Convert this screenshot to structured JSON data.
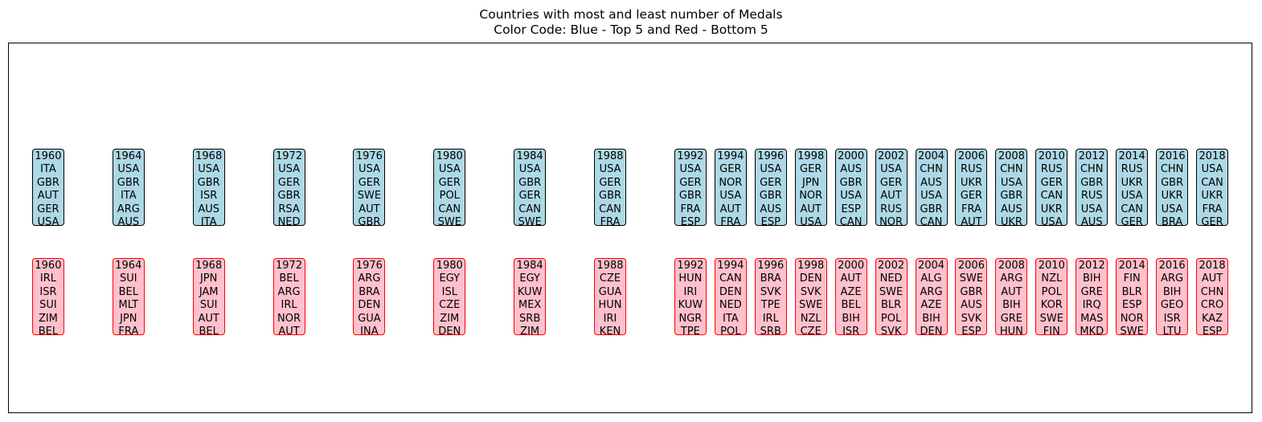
{
  "title_line1": "Countries with most and least number of Medals",
  "title_line2": "Color Code: Blue - Top 5 and Red - Bottom 5",
  "colors": {
    "top_fill": "#add8e6",
    "top_edge": "#000000",
    "bottom_fill": "#ffc0cb",
    "bottom_edge": "#ff0000"
  },
  "chart_data": {
    "type": "table",
    "title": "Countries with most and least number of Medals\nColor Code: Blue - Top 5 and Red - Bottom 5",
    "grid": false,
    "years": [
      "1960",
      "1964",
      "1968",
      "1972",
      "1976",
      "1980",
      "1984",
      "1988",
      "1992",
      "1994",
      "1996",
      "1998",
      "2000",
      "2002",
      "2004",
      "2006",
      "2008",
      "2010",
      "2012",
      "2014",
      "2016",
      "2018"
    ],
    "top5": [
      [
        "ITA",
        "GBR",
        "AUT",
        "GER",
        "USA"
      ],
      [
        "USA",
        "GBR",
        "ITA",
        "ARG",
        "AUS"
      ],
      [
        "USA",
        "GBR",
        "ISR",
        "AUS",
        "ITA"
      ],
      [
        "USA",
        "GER",
        "GBR",
        "RSA",
        "NED"
      ],
      [
        "USA",
        "GER",
        "SWE",
        "AUT",
        "GBR"
      ],
      [
        "USA",
        "GER",
        "POL",
        "CAN",
        "SWE"
      ],
      [
        "USA",
        "GBR",
        "GER",
        "CAN",
        "SWE"
      ],
      [
        "USA",
        "GER",
        "GBR",
        "CAN",
        "FRA"
      ],
      [
        "USA",
        "GER",
        "GBR",
        "FRA",
        "ESP"
      ],
      [
        "GER",
        "NOR",
        "USA",
        "AUT",
        "FRA"
      ],
      [
        "USA",
        "GER",
        "GBR",
        "AUS",
        "ESP"
      ],
      [
        "GER",
        "JPN",
        "NOR",
        "AUT",
        "USA"
      ],
      [
        "AUS",
        "GBR",
        "USA",
        "ESP",
        "CAN"
      ],
      [
        "USA",
        "GER",
        "AUT",
        "RUS",
        "NOR"
      ],
      [
        "CHN",
        "AUS",
        "USA",
        "GBR",
        "CAN"
      ],
      [
        "RUS",
        "UKR",
        "GER",
        "FRA",
        "AUT"
      ],
      [
        "CHN",
        "USA",
        "GBR",
        "AUS",
        "UKR"
      ],
      [
        "RUS",
        "GER",
        "CAN",
        "UKR",
        "USA"
      ],
      [
        "CHN",
        "GBR",
        "RUS",
        "USA",
        "AUS"
      ],
      [
        "RUS",
        "UKR",
        "USA",
        "CAN",
        "GER"
      ],
      [
        "CHN",
        "GBR",
        "UKR",
        "USA",
        "BRA"
      ],
      [
        "USA",
        "CAN",
        "UKR",
        "FRA",
        "GER"
      ]
    ],
    "bottom5": [
      [
        "IRL",
        "ISR",
        "SUI",
        "ZIM",
        "BEL"
      ],
      [
        "SUI",
        "BEL",
        "MLT",
        "JPN",
        "FRA"
      ],
      [
        "JPN",
        "JAM",
        "SUI",
        "AUT",
        "BEL"
      ],
      [
        "BEL",
        "ARG",
        "IRL",
        "NOR",
        "AUT"
      ],
      [
        "ARG",
        "BRA",
        "DEN",
        "GUA",
        "INA"
      ],
      [
        "EGY",
        "ISL",
        "CZE",
        "ZIM",
        "DEN"
      ],
      [
        "EGY",
        "KUW",
        "MEX",
        "SRB",
        "ZIM"
      ],
      [
        "CZE",
        "GUA",
        "HUN",
        "IRI",
        "KEN"
      ],
      [
        "HUN",
        "IRI",
        "KUW",
        "NGR",
        "TPE"
      ],
      [
        "CAN",
        "DEN",
        "NED",
        "ITA",
        "POL"
      ],
      [
        "BRA",
        "SVK",
        "TPE",
        "IRL",
        "SRB"
      ],
      [
        "DEN",
        "SVK",
        "SWE",
        "NZL",
        "CZE"
      ],
      [
        "AUT",
        "AZE",
        "BEL",
        "BIH",
        "ISR"
      ],
      [
        "NED",
        "SWE",
        "BLR",
        "POL",
        "SVK"
      ],
      [
        "ALG",
        "ARG",
        "AZE",
        "BIH",
        "DEN"
      ],
      [
        "SWE",
        "GBR",
        "AUS",
        "SVK",
        "ESP"
      ],
      [
        "ARG",
        "AUT",
        "BIH",
        "GRE",
        "HUN"
      ],
      [
        "NZL",
        "POL",
        "KOR",
        "SWE",
        "FIN"
      ],
      [
        "BIH",
        "GRE",
        "IRQ",
        "MAS",
        "MKD"
      ],
      [
        "FIN",
        "BLR",
        "ESP",
        "NOR",
        "SWE"
      ],
      [
        "ARG",
        "BIH",
        "GEO",
        "ISR",
        "LTU"
      ],
      [
        "AUT",
        "CHN",
        "CRO",
        "KAZ",
        "ESP"
      ]
    ]
  }
}
